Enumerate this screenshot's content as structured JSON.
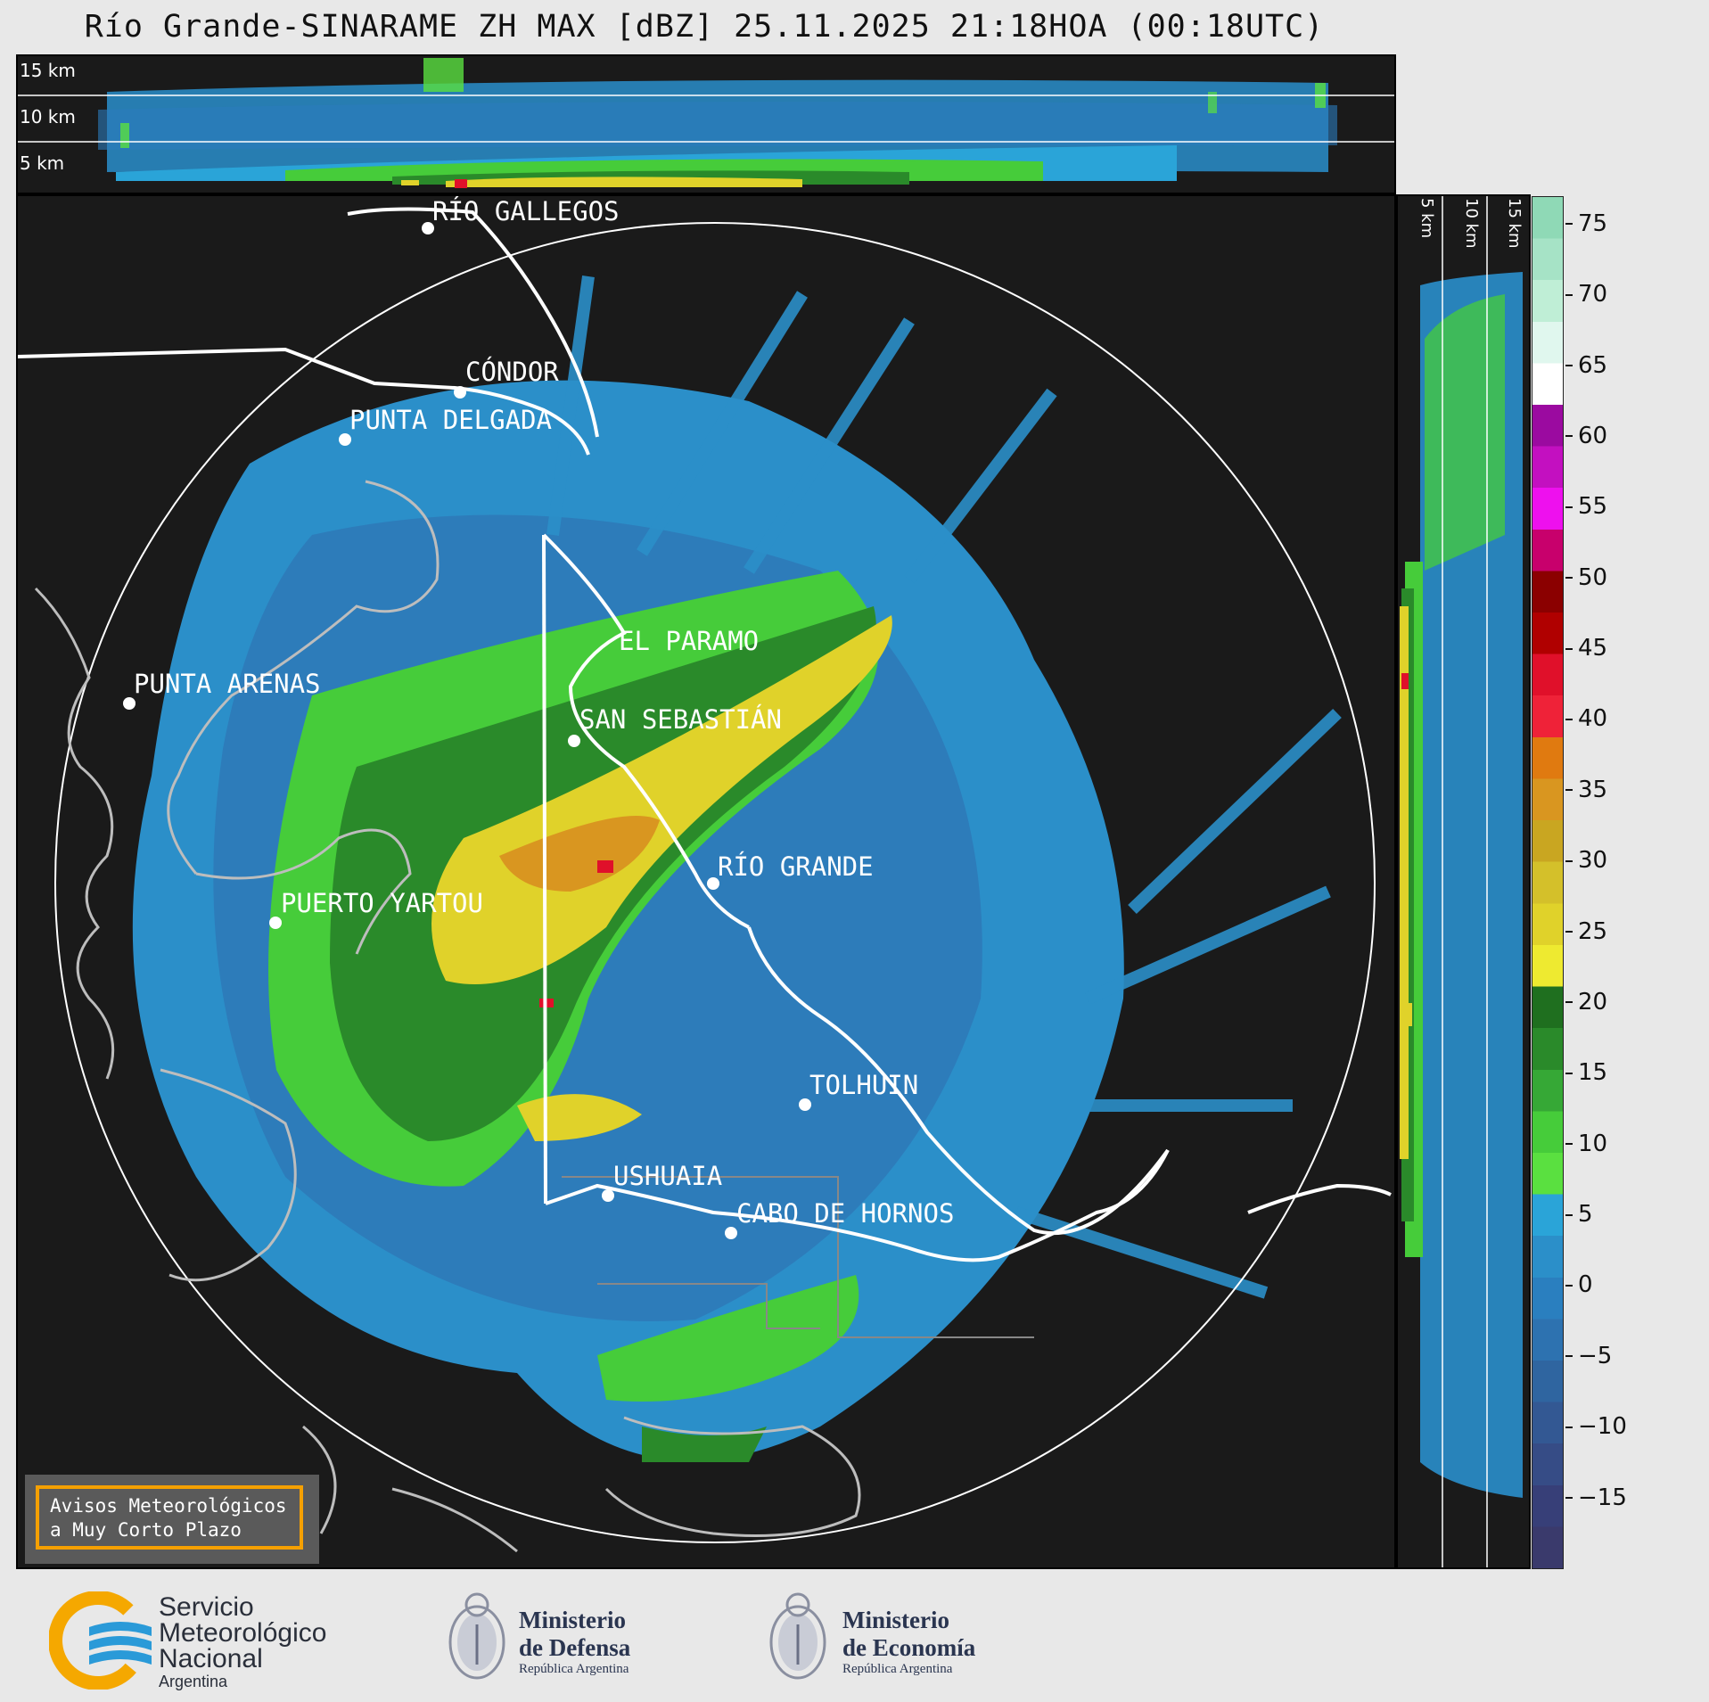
{
  "title": "Río Grande-SINARAME ZH MAX [dBZ] 25.11.2025 21:18HOA (00:18UTC)",
  "top_panel": {
    "altitude_labels": [
      "15 km",
      "10 km",
      "5 km"
    ]
  },
  "side_panel": {
    "altitude_labels": [
      "5 km",
      "10 km",
      "15 km"
    ]
  },
  "map": {
    "cities": [
      {
        "name": "RÍO GALLEGOS"
      },
      {
        "name": "CÓNDOR"
      },
      {
        "name": "PUNTA DELGADA"
      },
      {
        "name": "EL PARAMO"
      },
      {
        "name": "PUNTA ARENAS"
      },
      {
        "name": "SAN SEBASTIÁN"
      },
      {
        "name": "RÍO GRANDE"
      },
      {
        "name": "PUERTO YARTOU"
      },
      {
        "name": "TOLHUIN"
      },
      {
        "name": "USHUAIA"
      },
      {
        "name": "CABO DE HORNOS"
      }
    ]
  },
  "colorbar": {
    "unit": "dBZ",
    "ticks": [
      "75",
      "70",
      "65",
      "60",
      "55",
      "50",
      "45",
      "40",
      "35",
      "30",
      "25",
      "20",
      "15",
      "10",
      "5",
      "0",
      "−5",
      "−10",
      "−15"
    ],
    "colors": [
      "#8fd9b6",
      "#a6e3c6",
      "#bfeed6",
      "#e0f7ee",
      "#ffffff",
      "#9b0aa0",
      "#c310c0",
      "#ee10ee",
      "#c8006c",
      "#8b0000",
      "#b00000",
      "#e0102a",
      "#ef2238",
      "#e07a10",
      "#d99620",
      "#c9a621",
      "#d4c02a",
      "#e0d22a",
      "#eeea30",
      "#1f6f1f",
      "#2a8a2a",
      "#36a836",
      "#46cc3a",
      "#5ae040",
      "#2aa4d8",
      "#2b8fc9",
      "#2a7fbf",
      "#2d72b0",
      "#2f65a0",
      "#335893",
      "#364c86",
      "#373f78",
      "#3a3a6c"
    ]
  },
  "aviso": {
    "line1": "Avisos Meteorológicos",
    "line2": "a Muy Corto Plazo"
  },
  "footer": {
    "smn": {
      "line1": "Servicio",
      "line2": "Meteorológico",
      "line3": "Nacional",
      "line4": "Argentina"
    },
    "defensa": {
      "line1": "Ministerio",
      "line2": "de Defensa",
      "line3": "República Argentina"
    },
    "economia": {
      "line1": "Ministerio",
      "line2": "de Economía",
      "line3": "República Argentina"
    }
  }
}
